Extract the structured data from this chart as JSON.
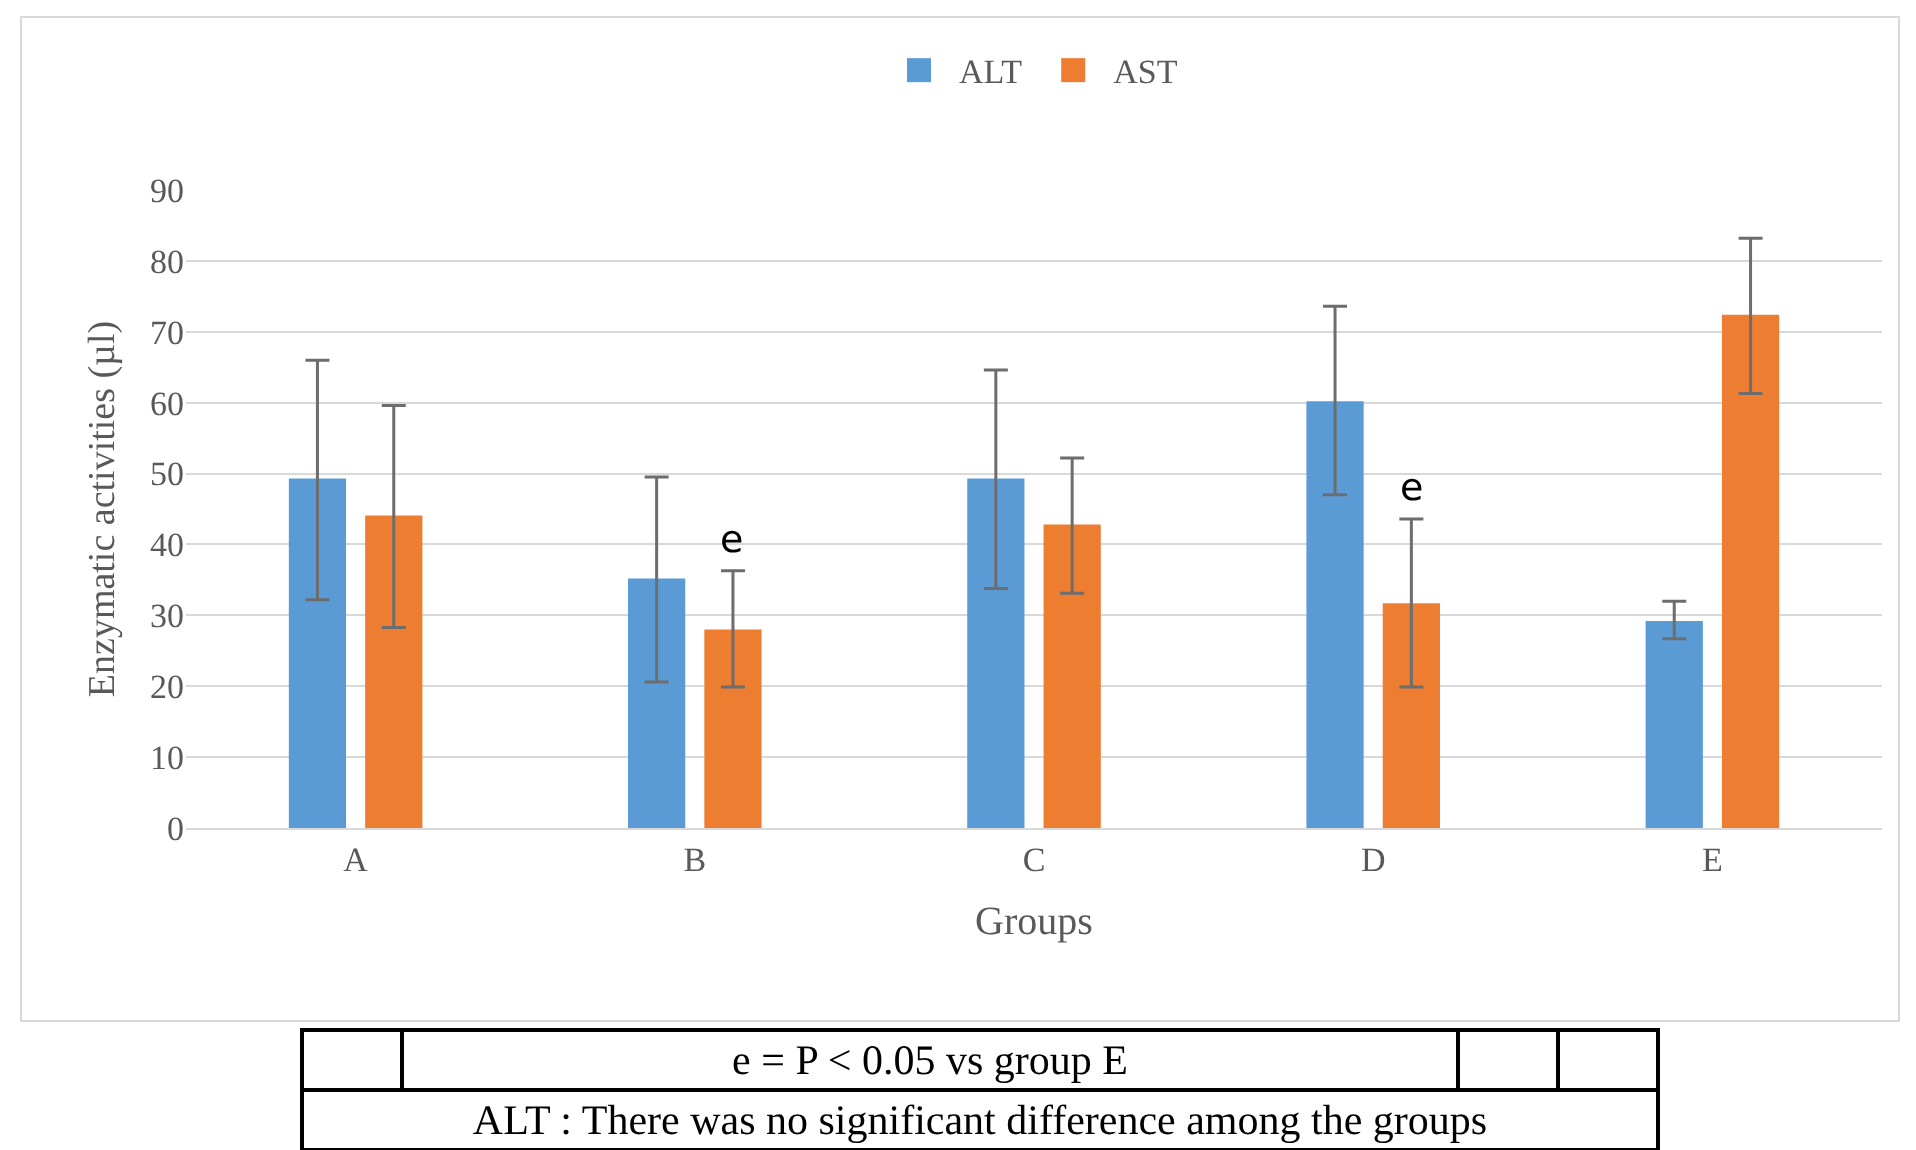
{
  "chart_data": {
    "type": "bar",
    "xlabel": "Groups",
    "ylabel": "Enzymatic activities (µl)",
    "categories": [
      "A",
      "B",
      "C",
      "D",
      "E"
    ],
    "series": [
      {
        "name": "ALT",
        "color": "#5b9bd5",
        "values": [
          49.3,
          35.2,
          49.3,
          60.2,
          29.2
        ],
        "errors": [
          [
            32.2,
            66.0
          ],
          [
            20.6,
            49.5
          ],
          [
            33.8,
            64.6
          ],
          [
            47.0,
            73.6
          ],
          [
            26.7,
            32.0
          ]
        ]
      },
      {
        "name": "AST",
        "color": "#ed7d31",
        "values": [
          44.1,
          28.0,
          42.8,
          31.7,
          72.4
        ],
        "errors": [
          [
            28.3,
            59.6
          ],
          [
            19.9,
            36.3
          ],
          [
            33.1,
            52.2
          ],
          [
            19.9,
            43.6
          ],
          [
            61.3,
            83.2
          ]
        ]
      }
    ],
    "ylim": [
      0,
      90
    ],
    "yticks": [
      0,
      10,
      20,
      30,
      40,
      50,
      60,
      70,
      80,
      90
    ],
    "grid": "y",
    "legend": "top",
    "annotations": [
      {
        "text": "e",
        "x": "B",
        "y": 28.0
      },
      {
        "text": "e",
        "x": "D",
        "y": 31.7
      },
      "e = P < 0.05 vs group E",
      "ALT : There was no significant difference among the groups"
    ]
  }
}
